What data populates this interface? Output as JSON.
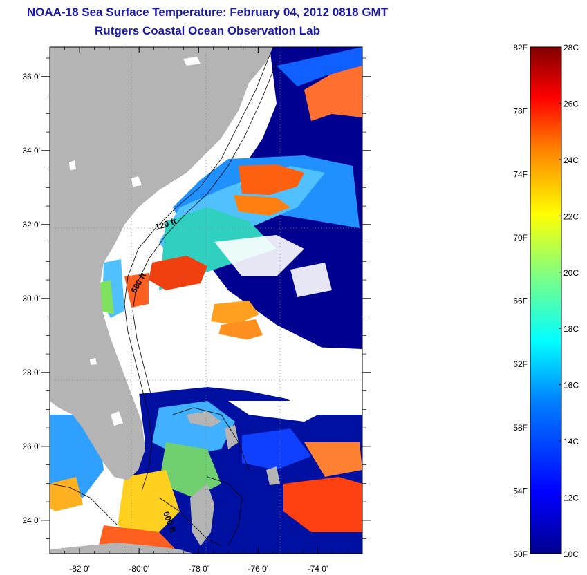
{
  "header": {
    "title": "NOAA-18 Sea Surface Temperature:  February 04, 2012 0818 GMT",
    "subtitle": "Rutgers Coastal Ocean Observation Lab"
  },
  "map": {
    "lon_ticks": [
      {
        "value": -82,
        "label": "-82 0'"
      },
      {
        "value": -80,
        "label": "-80 0'"
      },
      {
        "value": -78,
        "label": "-78 0'"
      },
      {
        "value": -76,
        "label": "-76 0'"
      },
      {
        "value": -74,
        "label": "-74 0'"
      }
    ],
    "lat_ticks": [
      {
        "value": 24,
        "label": "24 0'"
      },
      {
        "value": 26,
        "label": "26 0'"
      },
      {
        "value": 28,
        "label": "28 0'"
      },
      {
        "value": 30,
        "label": "30 0'"
      },
      {
        "value": 32,
        "label": "32 0'"
      },
      {
        "value": 34,
        "label": "34 0'"
      },
      {
        "value": 36,
        "label": "36 0'"
      }
    ],
    "lon_range": [
      -83.0,
      -72.5
    ],
    "lat_range": [
      23.1,
      36.8
    ],
    "contour_labels": [
      {
        "text": "120 ft"
      },
      {
        "text": "600 ft"
      },
      {
        "text": "600 ft"
      }
    ],
    "colors": {
      "land": "#b4b4b4",
      "cloud": "#ffffff",
      "frame": "#000000"
    }
  },
  "colorbar": {
    "fahrenheit": [
      "82F",
      "78F",
      "74F",
      "70F",
      "66F",
      "62F",
      "58F",
      "54F",
      "50F"
    ],
    "celsius": [
      "28C",
      "26C",
      "24C",
      "22C",
      "20C",
      "18C",
      "16C",
      "14C",
      "12C",
      "10C"
    ],
    "range_c": [
      10,
      28
    ],
    "colormap": [
      "#00008f",
      "#0000ff",
      "#0080ff",
      "#00ffff",
      "#80ff80",
      "#ffff00",
      "#ff8000",
      "#ff0000",
      "#800000"
    ]
  }
}
